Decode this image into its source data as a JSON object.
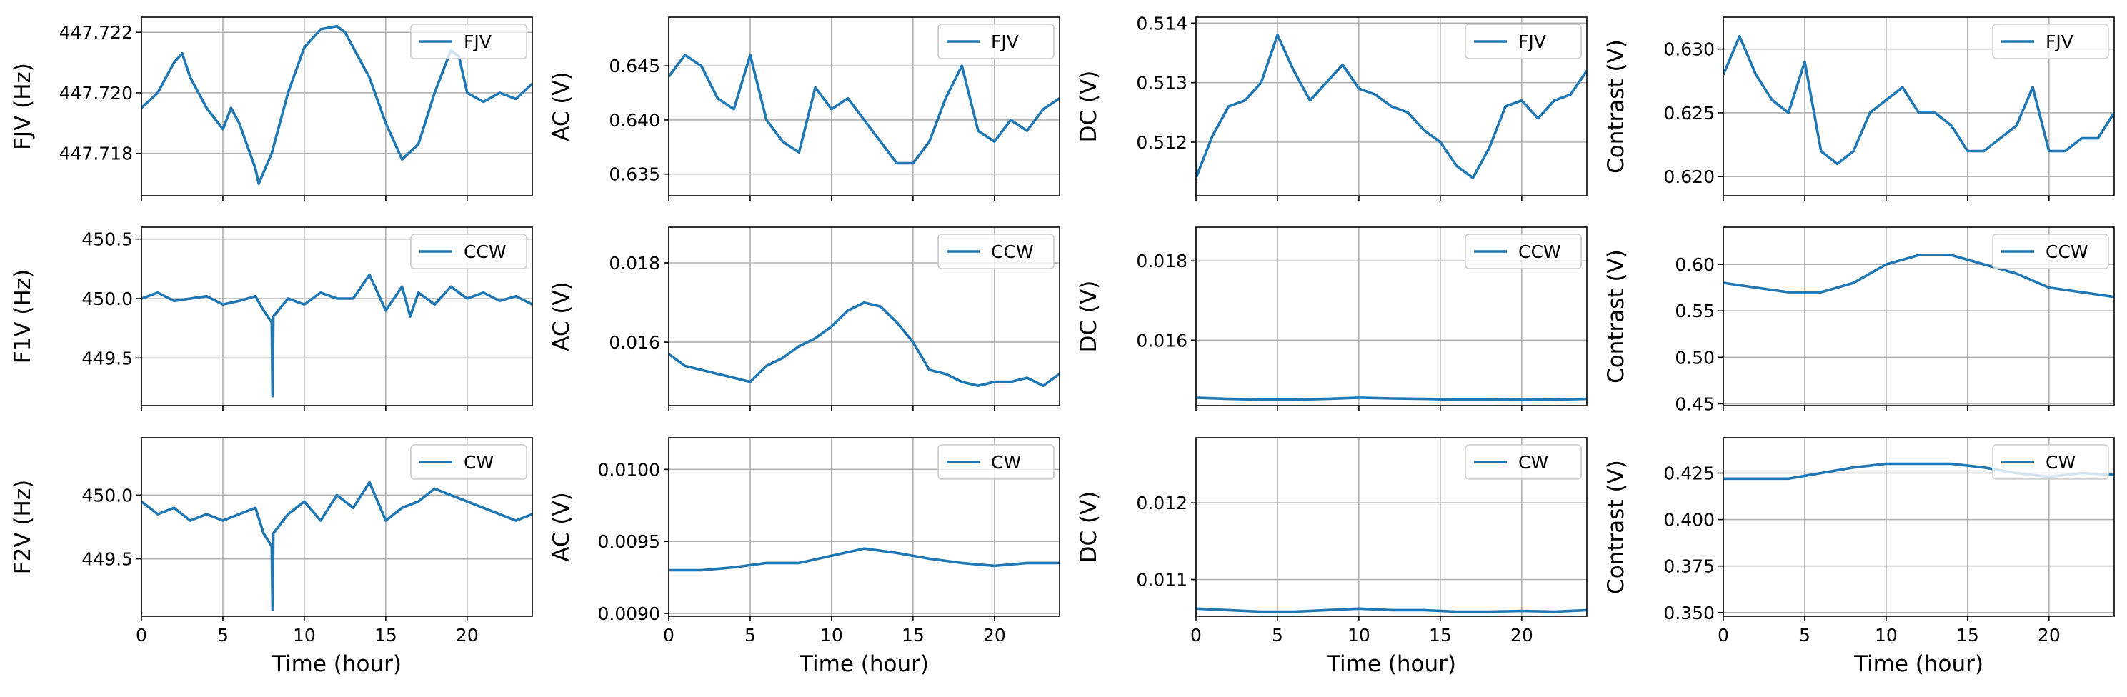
{
  "figure": {
    "x_axis_label": "Time (hour)",
    "line_color": "#1f77b4",
    "grid": true,
    "legend_position": "upper right"
  },
  "chart_data": [
    {
      "type": "line",
      "row": 0,
      "col": 0,
      "ylabel": "FJV (Hz)",
      "legend": "FJV",
      "xlim": [
        0,
        24
      ],
      "ylim": [
        447.7166,
        447.7225
      ],
      "xticks": [
        0,
        5,
        10,
        15,
        20
      ],
      "show_xticklabels": false,
      "yticks": [
        447.718,
        447.72,
        447.722
      ],
      "ytick_labels": [
        "447.718",
        "447.720",
        "447.722"
      ],
      "x": [
        0,
        1,
        2,
        2.5,
        3,
        4,
        5,
        5.5,
        6,
        7,
        7.2,
        8,
        9,
        10,
        11,
        12,
        12.5,
        13,
        14,
        15,
        16,
        17,
        18,
        19,
        19.5,
        20,
        21,
        22,
        23,
        24
      ],
      "values": [
        447.7195,
        447.72,
        447.721,
        447.7213,
        447.7205,
        447.7195,
        447.7188,
        447.7195,
        447.719,
        447.7175,
        447.717,
        447.718,
        447.72,
        447.7215,
        447.7221,
        447.7222,
        447.722,
        447.7215,
        447.7205,
        447.719,
        447.7178,
        447.7183,
        447.72,
        447.7214,
        447.7212,
        447.72,
        447.7197,
        447.72,
        447.7198,
        447.7203
      ]
    },
    {
      "type": "line",
      "row": 0,
      "col": 1,
      "ylabel": "AC (V)",
      "legend": "FJV",
      "xlim": [
        0,
        24
      ],
      "ylim": [
        0.633,
        0.6495
      ],
      "xticks": [
        0,
        5,
        10,
        15,
        20
      ],
      "show_xticklabels": false,
      "yticks": [
        0.635,
        0.64,
        0.645
      ],
      "ytick_labels": [
        "0.635",
        "0.640",
        "0.645"
      ],
      "x": [
        0,
        1,
        2,
        3,
        4,
        5,
        6,
        7,
        8,
        9,
        10,
        11,
        12,
        13,
        14,
        15,
        16,
        17,
        18,
        19,
        20,
        21,
        22,
        23,
        24
      ],
      "values": [
        0.644,
        0.646,
        0.645,
        0.642,
        0.641,
        0.646,
        0.64,
        0.638,
        0.637,
        0.643,
        0.641,
        0.642,
        0.64,
        0.638,
        0.636,
        0.636,
        0.638,
        0.642,
        0.645,
        0.639,
        0.638,
        0.64,
        0.639,
        0.641,
        0.642
      ]
    },
    {
      "type": "line",
      "row": 0,
      "col": 2,
      "ylabel": "DC (V)",
      "legend": "FJV",
      "xlim": [
        0,
        24
      ],
      "ylim": [
        0.5111,
        0.5141
      ],
      "xticks": [
        0,
        5,
        10,
        15,
        20
      ],
      "show_xticklabels": false,
      "yticks": [
        0.512,
        0.513,
        0.514
      ],
      "ytick_labels": [
        "0.512",
        "0.513",
        "0.514"
      ],
      "x": [
        0,
        1,
        2,
        3,
        4,
        5,
        6,
        7,
        8,
        9,
        10,
        11,
        12,
        13,
        14,
        15,
        16,
        17,
        18,
        19,
        20,
        21,
        22,
        23,
        24
      ],
      "values": [
        0.5114,
        0.5121,
        0.5126,
        0.5127,
        0.513,
        0.5138,
        0.5132,
        0.5127,
        0.513,
        0.5133,
        0.5129,
        0.5128,
        0.5126,
        0.5125,
        0.5122,
        0.512,
        0.5116,
        0.5114,
        0.5119,
        0.5126,
        0.5127,
        0.5124,
        0.5127,
        0.5128,
        0.5132
      ]
    },
    {
      "type": "line",
      "row": 0,
      "col": 3,
      "ylabel": "Contrast (V)",
      "legend": "FJV",
      "xlim": [
        0,
        24
      ],
      "ylim": [
        0.6185,
        0.6325
      ],
      "xticks": [
        0,
        5,
        10,
        15,
        20
      ],
      "show_xticklabels": false,
      "yticks": [
        0.62,
        0.625,
        0.63
      ],
      "ytick_labels": [
        "0.620",
        "0.625",
        "0.630"
      ],
      "x": [
        0,
        1,
        2,
        3,
        4,
        5,
        6,
        7,
        8,
        9,
        10,
        11,
        12,
        13,
        14,
        15,
        16,
        17,
        18,
        19,
        20,
        21,
        22,
        23,
        24
      ],
      "values": [
        0.628,
        0.631,
        0.628,
        0.626,
        0.625,
        0.629,
        0.622,
        0.621,
        0.622,
        0.625,
        0.626,
        0.627,
        0.625,
        0.625,
        0.624,
        0.622,
        0.622,
        0.623,
        0.624,
        0.627,
        0.622,
        0.622,
        0.623,
        0.623,
        0.625
      ]
    },
    {
      "type": "line",
      "row": 1,
      "col": 0,
      "ylabel": "F1V (Hz)",
      "legend": "CCW",
      "xlim": [
        0,
        24
      ],
      "ylim": [
        449.1,
        450.6
      ],
      "xticks": [
        0,
        5,
        10,
        15,
        20
      ],
      "show_xticklabels": false,
      "yticks": [
        449.5,
        450.0,
        450.5
      ],
      "ytick_labels": [
        "449.5",
        "450.0",
        "450.5"
      ],
      "x": [
        0,
        1,
        2,
        3,
        4,
        5,
        6,
        7,
        7.5,
        8,
        8.05,
        8.1,
        9,
        10,
        11,
        12,
        13,
        14,
        15,
        16,
        16.5,
        17,
        18,
        19,
        20,
        21,
        22,
        23,
        24
      ],
      "values": [
        450.0,
        450.05,
        449.98,
        450.0,
        450.02,
        449.95,
        449.98,
        450.02,
        449.9,
        449.8,
        449.18,
        449.85,
        450.0,
        449.95,
        450.05,
        450.0,
        450.0,
        450.2,
        449.9,
        450.1,
        449.85,
        450.05,
        449.95,
        450.1,
        450.0,
        450.05,
        449.98,
        450.02,
        449.95
      ]
    },
    {
      "type": "line",
      "row": 1,
      "col": 1,
      "ylabel": "AC (V)",
      "legend": "CCW",
      "xlim": [
        0,
        24
      ],
      "ylim": [
        0.0144,
        0.0189
      ],
      "xticks": [
        0,
        5,
        10,
        15,
        20
      ],
      "show_xticklabels": false,
      "yticks": [
        0.016,
        0.018
      ],
      "ytick_labels": [
        "0.016",
        "0.018"
      ],
      "x": [
        0,
        1,
        2,
        3,
        4,
        5,
        6,
        7,
        8,
        9,
        10,
        11,
        12,
        13,
        14,
        15,
        16,
        17,
        18,
        19,
        20,
        21,
        22,
        23,
        24
      ],
      "values": [
        0.0157,
        0.0154,
        0.0153,
        0.0152,
        0.0151,
        0.015,
        0.0154,
        0.0156,
        0.0159,
        0.0161,
        0.0164,
        0.0168,
        0.017,
        0.0169,
        0.0165,
        0.016,
        0.0153,
        0.0152,
        0.015,
        0.0149,
        0.015,
        0.015,
        0.0151,
        0.0149,
        0.0152
      ]
    },
    {
      "type": "line",
      "row": 1,
      "col": 2,
      "ylabel": "DC (V)",
      "legend": "CCW",
      "xlim": [
        0,
        24
      ],
      "ylim": [
        0.01435,
        0.01885
      ],
      "xticks": [
        0,
        5,
        10,
        15,
        20
      ],
      "show_xticklabels": false,
      "yticks": [
        0.016,
        0.018
      ],
      "ytick_labels": [
        "0.016",
        "0.018"
      ],
      "x": [
        0,
        2,
        4,
        6,
        8,
        10,
        12,
        14,
        16,
        18,
        20,
        22,
        24
      ],
      "values": [
        0.01455,
        0.01452,
        0.0145,
        0.0145,
        0.01452,
        0.01455,
        0.01453,
        0.01452,
        0.0145,
        0.0145,
        0.01451,
        0.0145,
        0.01452
      ]
    },
    {
      "type": "line",
      "row": 1,
      "col": 3,
      "ylabel": "Contrast (V)",
      "legend": "CCW",
      "xlim": [
        0,
        24
      ],
      "ylim": [
        0.448,
        0.64
      ],
      "xticks": [
        0,
        5,
        10,
        15,
        20
      ],
      "show_xticklabels": false,
      "yticks": [
        0.45,
        0.5,
        0.55,
        0.6
      ],
      "ytick_labels": [
        "0.45",
        "0.50",
        "0.55",
        "0.60"
      ],
      "x": [
        0,
        2,
        4,
        6,
        8,
        10,
        12,
        14,
        16,
        18,
        20,
        22,
        24
      ],
      "values": [
        0.58,
        0.575,
        0.57,
        0.57,
        0.58,
        0.6,
        0.61,
        0.61,
        0.6,
        0.59,
        0.575,
        0.57,
        0.565
      ]
    },
    {
      "type": "line",
      "row": 2,
      "col": 0,
      "ylabel": "F2V (Hz)",
      "legend": "CW",
      "xlim": [
        0,
        24
      ],
      "ylim": [
        449.05,
        450.45
      ],
      "xticks": [
        0,
        5,
        10,
        15,
        20
      ],
      "show_xticklabels": true,
      "yticks": [
        449.5,
        450.0
      ],
      "ytick_labels": [
        "449.5",
        "450.0"
      ],
      "x": [
        0,
        1,
        2,
        3,
        4,
        5,
        6,
        7,
        7.5,
        8,
        8.05,
        8.1,
        9,
        10,
        11,
        12,
        13,
        14,
        15,
        16,
        17,
        18,
        19,
        20,
        21,
        22,
        23,
        24
      ],
      "values": [
        449.95,
        449.85,
        449.9,
        449.8,
        449.85,
        449.8,
        449.85,
        449.9,
        449.7,
        449.6,
        449.1,
        449.7,
        449.85,
        449.95,
        449.8,
        450.0,
        449.9,
        450.1,
        449.8,
        449.9,
        449.95,
        450.05,
        450.0,
        449.95,
        449.9,
        449.85,
        449.8,
        449.85
      ]
    },
    {
      "type": "line",
      "row": 2,
      "col": 1,
      "ylabel": "AC (V)",
      "legend": "CW",
      "xlim": [
        0,
        24
      ],
      "ylim": [
        0.00898,
        0.01022
      ],
      "xticks": [
        0,
        5,
        10,
        15,
        20
      ],
      "show_xticklabels": true,
      "yticks": [
        0.009,
        0.0095,
        0.01
      ],
      "ytick_labels": [
        "0.0090",
        "0.0095",
        "0.0100"
      ],
      "x": [
        0,
        2,
        4,
        6,
        8,
        10,
        12,
        14,
        16,
        18,
        20,
        22,
        24
      ],
      "values": [
        0.0093,
        0.0093,
        0.00932,
        0.00935,
        0.00935,
        0.0094,
        0.00945,
        0.00942,
        0.00938,
        0.00935,
        0.00933,
        0.00935,
        0.00935
      ]
    },
    {
      "type": "line",
      "row": 2,
      "col": 2,
      "ylabel": "DC (V)",
      "legend": "CW",
      "xlim": [
        0,
        24
      ],
      "ylim": [
        0.01052,
        0.01285
      ],
      "xticks": [
        0,
        5,
        10,
        15,
        20
      ],
      "show_xticklabels": true,
      "yticks": [
        0.011,
        0.012
      ],
      "ytick_labels": [
        "0.011",
        "0.012"
      ],
      "x": [
        0,
        2,
        4,
        6,
        8,
        10,
        12,
        14,
        16,
        18,
        20,
        22,
        24
      ],
      "values": [
        0.01062,
        0.0106,
        0.01058,
        0.01058,
        0.0106,
        0.01062,
        0.0106,
        0.0106,
        0.01058,
        0.01058,
        0.01059,
        0.01058,
        0.0106
      ]
    },
    {
      "type": "line",
      "row": 2,
      "col": 3,
      "ylabel": "Contrast (V)",
      "legend": "CW",
      "xlim": [
        0,
        24
      ],
      "ylim": [
        0.348,
        0.444
      ],
      "xticks": [
        0,
        5,
        10,
        15,
        20
      ],
      "show_xticklabels": true,
      "yticks": [
        0.35,
        0.375,
        0.4,
        0.425
      ],
      "ytick_labels": [
        "0.350",
        "0.375",
        "0.400",
        "0.425"
      ],
      "x": [
        0,
        2,
        4,
        6,
        8,
        10,
        12,
        14,
        16,
        18,
        20,
        22,
        24
      ],
      "values": [
        0.422,
        0.422,
        0.422,
        0.425,
        0.428,
        0.43,
        0.43,
        0.43,
        0.428,
        0.425,
        0.423,
        0.425,
        0.424
      ]
    }
  ]
}
